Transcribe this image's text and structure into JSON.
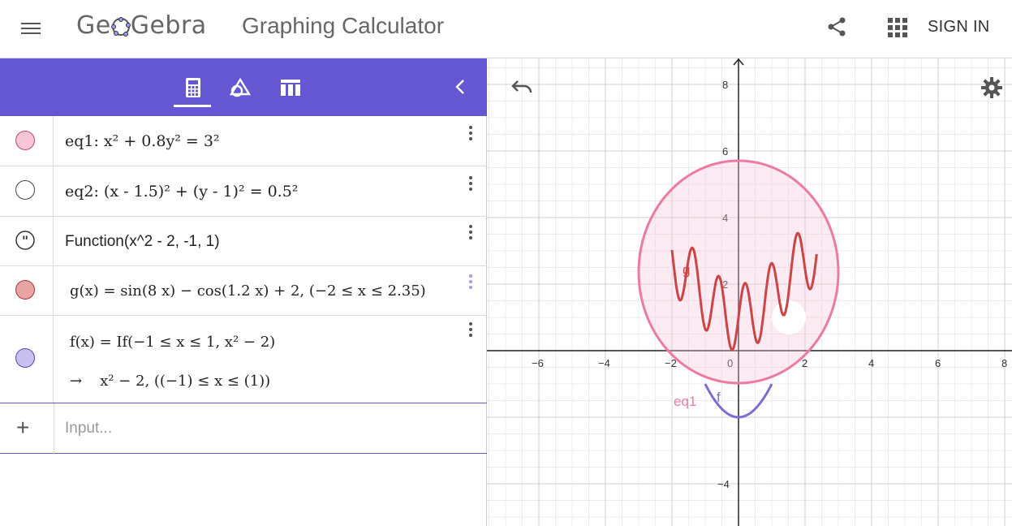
{
  "header": {
    "logo_text_left": "Ge",
    "logo_text_right": "Gebra",
    "app_title": "Graphing Calculator",
    "sign_in": "SIGN IN"
  },
  "algebra": {
    "collapse_icon": "chevron-left-icon",
    "rows": [
      {
        "label": "eq1: x² + 0.8y² = 3²",
        "marble_color": "#f7c6d9"
      },
      {
        "label": "eq2: (x - 1.5)² + (y - 1)² = 0.5²",
        "marble_color": "#ffffff"
      },
      {
        "label": "Function(x^2 - 2, -1, 1)",
        "marble_color": "quote-icon"
      },
      {
        "label": "g(x)  =  sin(8 x) − cos(1.2 x) + 2,    (−2 ≤ x ≤ 2.35)",
        "marble_color": "#e8a3a3"
      },
      {
        "label": "f(x)  =  If(−1 ≤ x ≤ 1, x² − 2)",
        "sub": "x² − 2,    ((−1) ≤ x ≤ (1))",
        "marble_color": "#c8c0ee"
      }
    ],
    "input_placeholder": "Input..."
  },
  "graph": {
    "x_ticks": [
      "−6",
      "−4",
      "−2",
      "0",
      "2",
      "4",
      "6",
      "8"
    ],
    "y_ticks": [
      "8",
      "6",
      "4",
      "2",
      "−4"
    ],
    "labels": {
      "g": "g",
      "f": "f",
      "eq1": "eq1"
    },
    "colors": {
      "eq1": "#ee7aa3",
      "g": "#cc4444",
      "f": "#7a6fd6",
      "eq2": "#ffffff",
      "accent": "#6557d2"
    }
  }
}
